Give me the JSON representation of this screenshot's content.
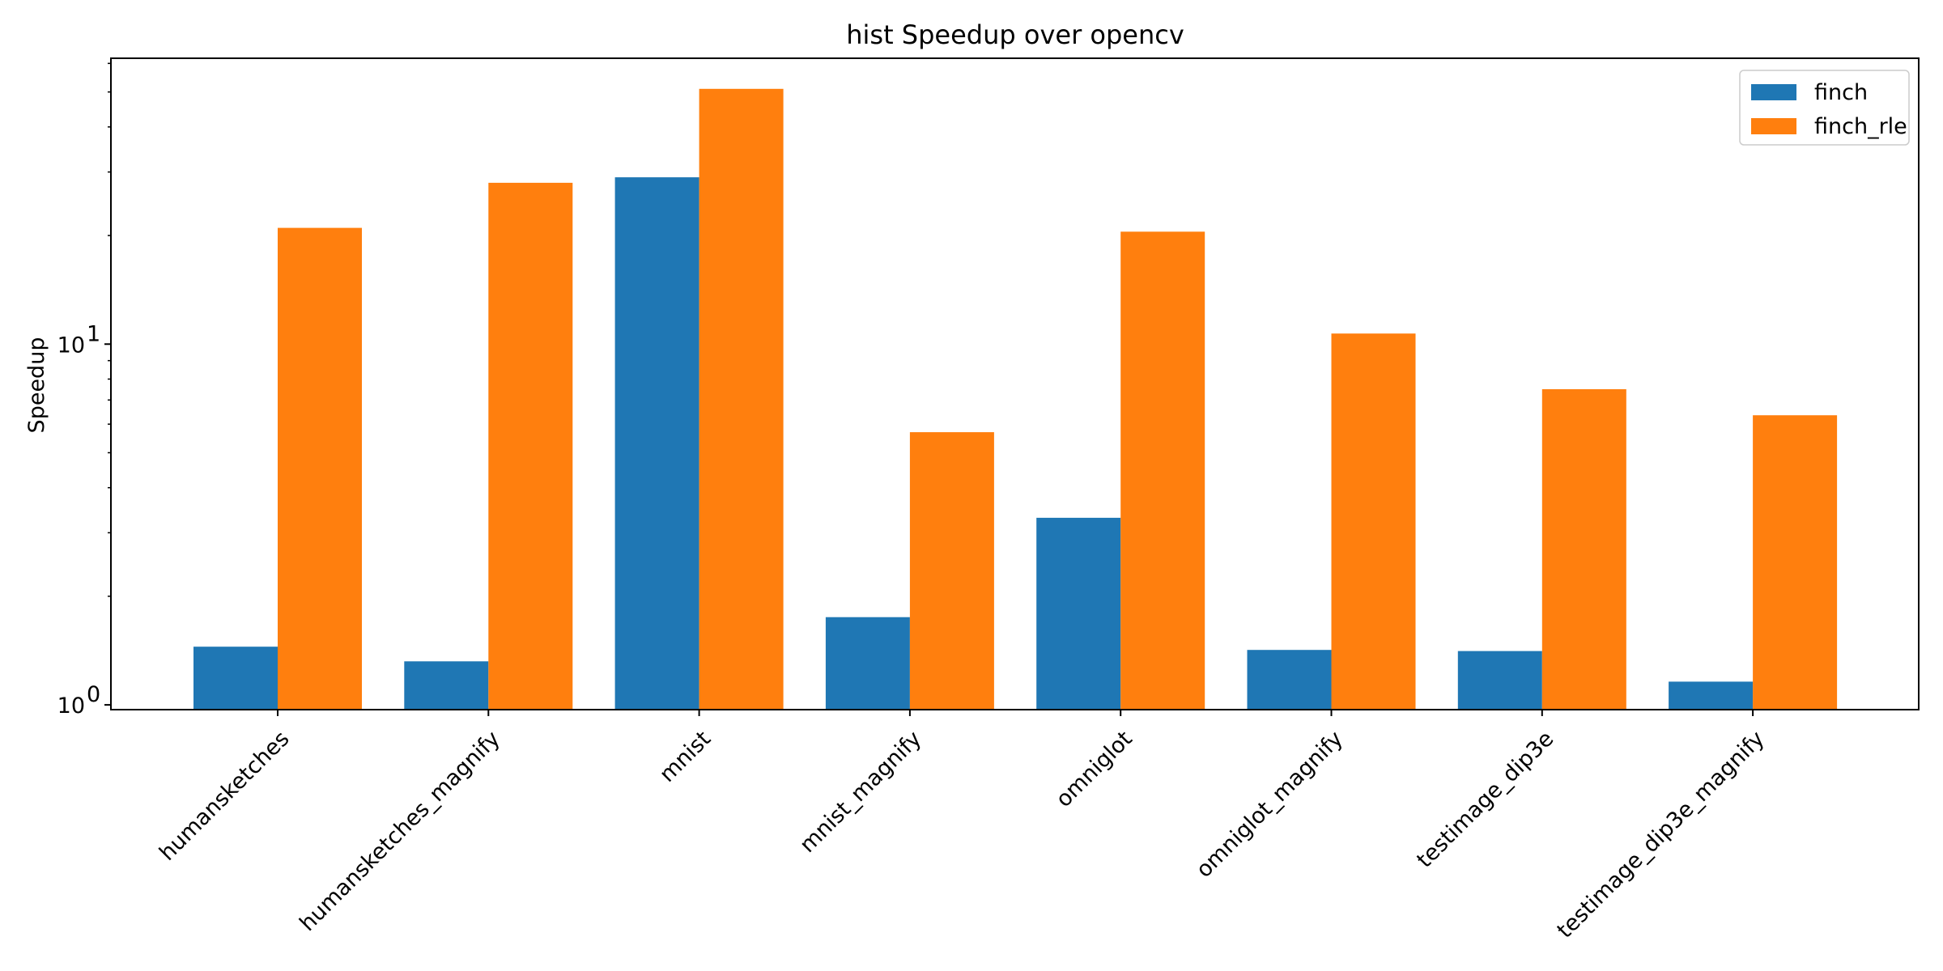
{
  "chart_data": {
    "type": "bar",
    "title": "hist Speedup over opencv",
    "xlabel": "",
    "ylabel": "Speedup",
    "yscale": "log",
    "ylim": [
      0.97,
      62
    ],
    "y_ticks": [
      {
        "value": 1,
        "base": "10",
        "exp": "0"
      },
      {
        "value": 10,
        "base": "10",
        "exp": "1"
      }
    ],
    "categories": [
      "humansketches",
      "humansketches_magnify",
      "mnist",
      "mnist_magnify",
      "omniglot",
      "omniglot_magnify",
      "testimage_dip3e",
      "testimage_dip3e_magnify"
    ],
    "series": [
      {
        "name": "finch",
        "color": "#1f77b4",
        "values": [
          1.45,
          1.32,
          29.0,
          1.75,
          3.3,
          1.42,
          1.41,
          1.16
        ]
      },
      {
        "name": "finch_rle",
        "color": "#ff7f0e",
        "values": [
          21.0,
          28.0,
          51.0,
          5.7,
          20.5,
          10.7,
          7.5,
          6.35
        ]
      }
    ],
    "legend_position": "top-right",
    "grid": false
  }
}
